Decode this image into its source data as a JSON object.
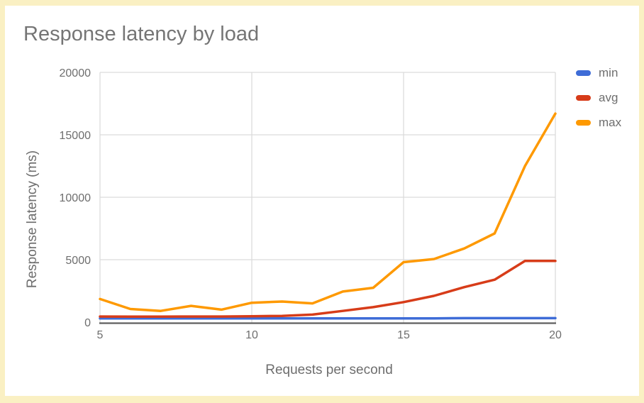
{
  "chart_data": {
    "type": "line",
    "title": "Response latency by load",
    "xlabel": "Requests per second",
    "ylabel": "Response latency (ms)",
    "x": [
      5,
      6,
      7,
      8,
      9,
      10,
      11,
      12,
      13,
      14,
      15,
      16,
      17,
      18,
      19,
      20
    ],
    "series": [
      {
        "name": "min",
        "color": "#3e6cd7",
        "values": [
          300,
          300,
          300,
          300,
          300,
          300,
          300,
          300,
          300,
          300,
          300,
          300,
          320,
          320,
          320,
          320
        ]
      },
      {
        "name": "avg",
        "color": "#d73c19",
        "values": [
          450,
          440,
          440,
          450,
          450,
          470,
          500,
          600,
          900,
          1200,
          1600,
          2100,
          2800,
          3400,
          4900,
          4900
        ]
      },
      {
        "name": "max",
        "color": "#fe9900",
        "values": [
          1850,
          1050,
          900,
          1300,
          1000,
          1550,
          1650,
          1500,
          2450,
          2750,
          4800,
          5050,
          5900,
          7100,
          12500,
          16700
        ]
      }
    ],
    "xlim": [
      5,
      20
    ],
    "ylim": [
      0,
      20000
    ],
    "xticks": [
      5,
      10,
      15,
      20
    ],
    "yticks": [
      0,
      5000,
      10000,
      15000,
      20000
    ],
    "grid": true,
    "legend_position": "right"
  },
  "styles": {
    "frame_color": "#faf0c3",
    "background_color": "#ffffff",
    "grid_color": "#dcdcdc",
    "axis_line_color": "#5f5f5f",
    "text_color": "#6e6e6e",
    "title_color": "#757575"
  }
}
